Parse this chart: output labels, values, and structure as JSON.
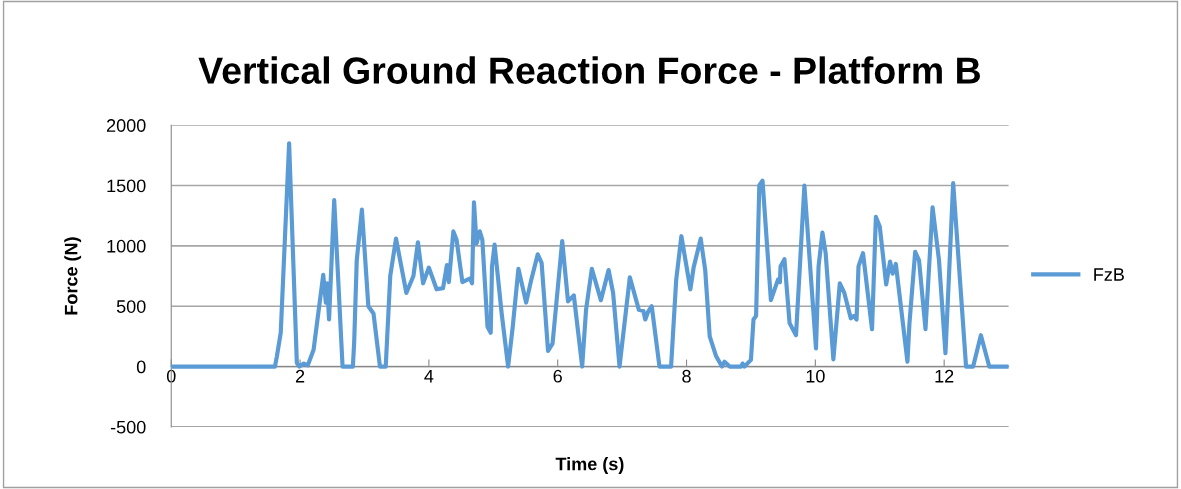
{
  "chart_data": {
    "type": "line",
    "title": "Vertical Ground Reaction Force - Platform B",
    "xlabel": "Time (s)",
    "ylabel": "Force (N)",
    "xlim": [
      0,
      13
    ],
    "xticks": [
      0,
      2,
      4,
      6,
      8,
      10,
      12
    ],
    "ylim": [
      -500,
      2000
    ],
    "yticks": [
      -500,
      0,
      500,
      1000,
      1500,
      2000
    ],
    "grid": "y",
    "legend": "right",
    "marker": "none",
    "line_style": "solid",
    "series": [
      {
        "name": "FzB",
        "color": "#5b9bd5",
        "x": [
          0,
          1.61,
          1.64,
          1.7,
          1.83,
          1.95,
          1.99,
          2.06,
          2.12,
          2.21,
          2.36,
          2.4,
          2.42,
          2.45,
          2.53,
          2.66,
          2.82,
          2.84,
          2.88,
          2.96,
          3.06,
          3.14,
          3.24,
          3.33,
          3.4,
          3.49,
          3.65,
          3.76,
          3.83,
          3.91,
          4.0,
          4.12,
          4.22,
          4.28,
          4.31,
          4.38,
          4.43,
          4.52,
          4.64,
          4.67,
          4.7,
          4.74,
          4.79,
          4.83,
          4.91,
          4.96,
          4.98,
          5.02,
          5.13,
          5.23,
          5.3,
          5.39,
          5.51,
          5.59,
          5.69,
          5.75,
          5.85,
          5.92,
          6.07,
          6.16,
          6.25,
          6.38,
          6.44,
          6.53,
          6.67,
          6.79,
          6.86,
          6.96,
          7.12,
          7.26,
          7.33,
          7.36,
          7.4,
          7.46,
          7.58,
          7.76,
          7.84,
          7.92,
          8.06,
          8.11,
          8.22,
          8.29,
          8.36,
          8.46,
          8.55,
          8.59,
          8.67,
          8.85,
          8.87,
          8.9,
          9.0,
          9.04,
          9.08,
          9.13,
          9.18,
          9.31,
          9.42,
          9.45,
          9.46,
          9.52,
          9.6,
          9.7,
          9.83,
          10.01,
          10.05,
          10.11,
          10.16,
          10.28,
          10.38,
          10.45,
          10.55,
          10.6,
          10.64,
          10.67,
          10.74,
          10.88,
          10.94,
          11.0,
          11.1,
          11.16,
          11.2,
          11.25,
          11.43,
          11.46,
          11.55,
          11.61,
          11.71,
          11.82,
          11.92,
          12.02,
          12.14,
          12.34,
          12.45,
          12.57,
          12.7,
          13
        ],
        "values": [
          0,
          0,
          85,
          280,
          1850,
          30,
          0,
          25,
          10,
          140,
          760,
          530,
          690,
          390,
          1380,
          0,
          0,
          200,
          880,
          1300,
          500,
          440,
          0,
          0,
          750,
          1060,
          610,
          750,
          1030,
          690,
          820,
          640,
          650,
          840,
          700,
          1120,
          1050,
          700,
          730,
          690,
          1360,
          1020,
          1120,
          1050,
          330,
          280,
          830,
          1010,
          440,
          0,
          320,
          810,
          530,
          720,
          930,
          860,
          130,
          190,
          1040,
          540,
          590,
          0,
          470,
          810,
          550,
          800,
          610,
          0,
          740,
          470,
          460,
          390,
          450,
          500,
          0,
          0,
          720,
          1080,
          640,
          820,
          1060,
          800,
          250,
          85,
          0,
          40,
          0,
          0,
          25,
          0,
          55,
          390,
          420,
          1500,
          1540,
          550,
          720,
          700,
          830,
          890,
          360,
          260,
          1500,
          150,
          830,
          1110,
          940,
          60,
          690,
          610,
          400,
          420,
          390,
          830,
          940,
          310,
          1240,
          1160,
          680,
          870,
          770,
          850,
          40,
          350,
          950,
          880,
          310,
          1320,
          880,
          110,
          1520,
          0,
          0,
          260,
          0,
          0
        ]
      }
    ]
  }
}
